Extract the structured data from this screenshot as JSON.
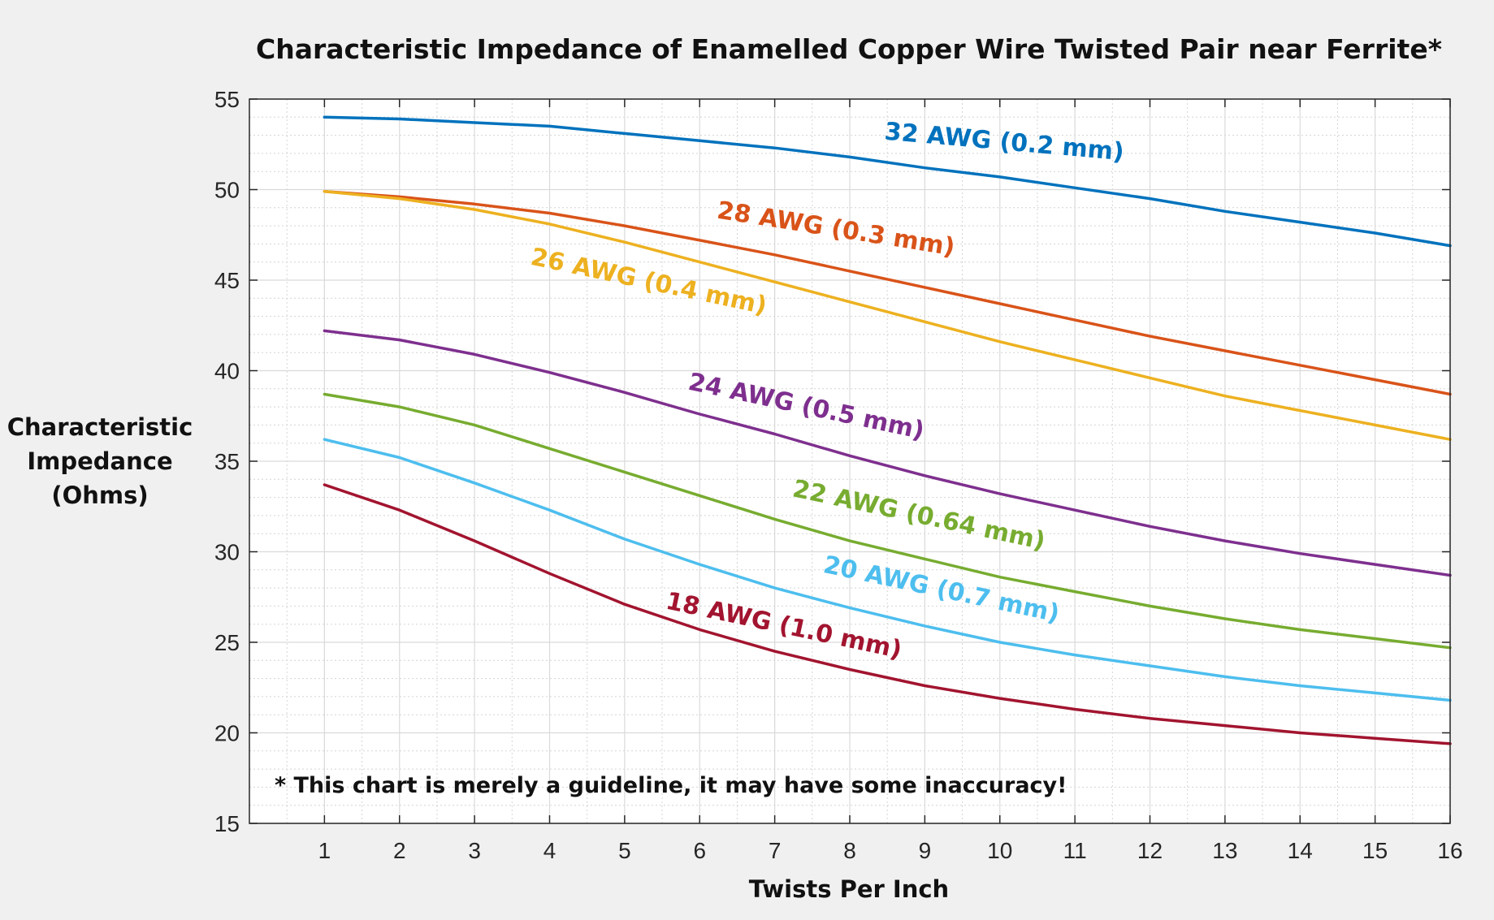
{
  "chart_data": {
    "type": "line",
    "title": "Characteristic Impedance of Enamelled Copper Wire Twisted Pair near Ferrite*",
    "xlabel": "Twists Per Inch",
    "ylabel_lines": [
      "Characteristic",
      "Impedance",
      "(Ohms)"
    ],
    "note": "* This chart is merely a guideline, it may have some inaccuracy!",
    "xlim": [
      0,
      16
    ],
    "ylim": [
      15,
      55
    ],
    "xticks": [
      1,
      2,
      3,
      4,
      5,
      6,
      7,
      8,
      9,
      10,
      11,
      12,
      13,
      14,
      15,
      16
    ],
    "yticks": [
      15,
      20,
      25,
      30,
      35,
      40,
      45,
      50,
      55
    ],
    "grid": true,
    "x": [
      1,
      2,
      3,
      4,
      5,
      6,
      7,
      8,
      9,
      10,
      11,
      12,
      13,
      14,
      15,
      16
    ],
    "series": [
      {
        "name": "32 AWG (0.2 mm)",
        "color": "#0072bd",
        "values": [
          54.0,
          53.9,
          53.7,
          53.5,
          53.1,
          52.7,
          52.3,
          51.8,
          51.2,
          50.7,
          50.1,
          49.5,
          48.8,
          48.2,
          47.6,
          46.9
        ],
        "label_at": [
          10.05,
          52.2
        ],
        "label_angle": 5
      },
      {
        "name": "28 AWG (0.3 mm)",
        "color": "#d95319",
        "values": [
          49.9,
          49.6,
          49.2,
          48.7,
          48.0,
          47.2,
          46.4,
          45.5,
          44.6,
          43.7,
          42.8,
          41.9,
          41.1,
          40.3,
          39.5,
          38.7
        ],
        "label_at": [
          7.8,
          47.4
        ],
        "label_angle": 9
      },
      {
        "name": "26 AWG (0.4 mm)",
        "color": "#edb120",
        "values": [
          49.9,
          49.5,
          48.9,
          48.1,
          47.1,
          46.0,
          44.9,
          43.8,
          42.7,
          41.6,
          40.6,
          39.6,
          38.6,
          37.8,
          37.0,
          36.2
        ],
        "label_at": [
          5.3,
          44.5
        ],
        "label_angle": 12
      },
      {
        "name": "24 AWG (0.5 mm)",
        "color": "#7e2f8e",
        "values": [
          42.2,
          41.7,
          40.9,
          39.9,
          38.8,
          37.6,
          36.5,
          35.3,
          34.2,
          33.2,
          32.3,
          31.4,
          30.6,
          29.9,
          29.3,
          28.7
        ],
        "label_at": [
          7.4,
          37.6
        ],
        "label_angle": 12
      },
      {
        "name": "22 AWG (0.64 mm)",
        "color": "#77ac30",
        "values": [
          38.7,
          38.0,
          37.0,
          35.7,
          34.4,
          33.1,
          31.8,
          30.6,
          29.6,
          28.6,
          27.8,
          27.0,
          26.3,
          25.7,
          25.2,
          24.7
        ],
        "label_at": [
          8.9,
          31.6
        ],
        "label_angle": 12
      },
      {
        "name": "20 AWG (0.7 mm)",
        "color": "#4dbeee",
        "values": [
          36.2,
          35.2,
          33.8,
          32.3,
          30.7,
          29.3,
          28.0,
          26.9,
          25.9,
          25.0,
          24.3,
          23.7,
          23.1,
          22.6,
          22.2,
          21.8
        ],
        "label_at": [
          9.2,
          27.5
        ],
        "label_angle": 12
      },
      {
        "name": "18 AWG (1.0 mm)",
        "color": "#a2142f",
        "values": [
          33.7,
          32.3,
          30.6,
          28.8,
          27.1,
          25.7,
          24.5,
          23.5,
          22.6,
          21.9,
          21.3,
          20.8,
          20.4,
          20.0,
          19.7,
          19.4
        ],
        "label_at": [
          7.1,
          25.5
        ],
        "label_angle": 12
      }
    ]
  }
}
